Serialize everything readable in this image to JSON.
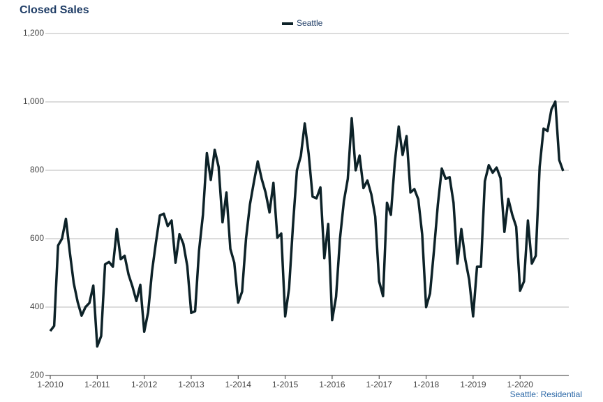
{
  "chart_data": {
    "type": "line",
    "title": "Closed Sales",
    "subtitle": "Seattle: Residential",
    "categories": [
      "1-2010",
      null,
      null,
      null,
      null,
      null,
      null,
      null,
      null,
      null,
      null,
      null,
      "1-2011",
      null,
      null,
      null,
      null,
      null,
      null,
      null,
      null,
      null,
      null,
      null,
      "1-2012",
      null,
      null,
      null,
      null,
      null,
      null,
      null,
      null,
      null,
      null,
      null,
      "1-2013",
      null,
      null,
      null,
      null,
      null,
      null,
      null,
      null,
      null,
      null,
      null,
      "1-2014",
      null,
      null,
      null,
      null,
      null,
      null,
      null,
      null,
      null,
      null,
      null,
      "1-2015",
      null,
      null,
      null,
      null,
      null,
      null,
      null,
      null,
      null,
      null,
      null,
      "1-2016",
      null,
      null,
      null,
      null,
      null,
      null,
      null,
      null,
      null,
      null,
      null,
      "1-2017",
      null,
      null,
      null,
      null,
      null,
      null,
      null,
      null,
      null,
      null,
      null,
      "1-2018",
      null,
      null,
      null,
      null,
      null,
      null,
      null,
      null,
      null,
      null,
      null,
      "1-2019",
      null,
      null,
      null,
      null,
      null,
      null,
      null,
      null,
      null,
      null,
      null,
      "1-2020",
      null,
      null,
      null,
      null,
      null,
      null,
      null,
      null,
      null,
      null,
      null
    ],
    "series": [
      {
        "name": "Seattle",
        "color": "#0d2228",
        "values": [
          330,
          345,
          580,
          600,
          658,
          560,
          470,
          415,
          375,
          400,
          412,
          463,
          285,
          315,
          525,
          532,
          518,
          628,
          540,
          550,
          495,
          460,
          418,
          465,
          328,
          385,
          505,
          590,
          668,
          673,
          637,
          653,
          530,
          613,
          585,
          520,
          383,
          388,
          565,
          670,
          850,
          772,
          860,
          810,
          648,
          735,
          570,
          530,
          413,
          445,
          600,
          700,
          765,
          826,
          775,
          735,
          677,
          763,
          603,
          615,
          373,
          455,
          640,
          800,
          842,
          937,
          848,
          723,
          718,
          750,
          543,
          643,
          362,
          430,
          600,
          710,
          775,
          952,
          800,
          843,
          748,
          770,
          730,
          665,
          475,
          432,
          705,
          670,
          823,
          928,
          845,
          900,
          735,
          745,
          715,
          612,
          400,
          440,
          565,
          700,
          805,
          775,
          780,
          705,
          527,
          628,
          540,
          480,
          373,
          518,
          518,
          768,
          815,
          793,
          808,
          777,
          620,
          716,
          670,
          635,
          448,
          475,
          653,
          527,
          550,
          810,
          922,
          915,
          978,
          1001,
          830,
          798
        ]
      }
    ],
    "ylim": [
      200,
      1200
    ],
    "yticks": [
      200,
      400,
      600,
      800,
      {
        "value": 1000,
        "label": "1,000"
      },
      {
        "value": 1200,
        "label": "1,200"
      }
    ],
    "grid": true,
    "legend": "top"
  }
}
